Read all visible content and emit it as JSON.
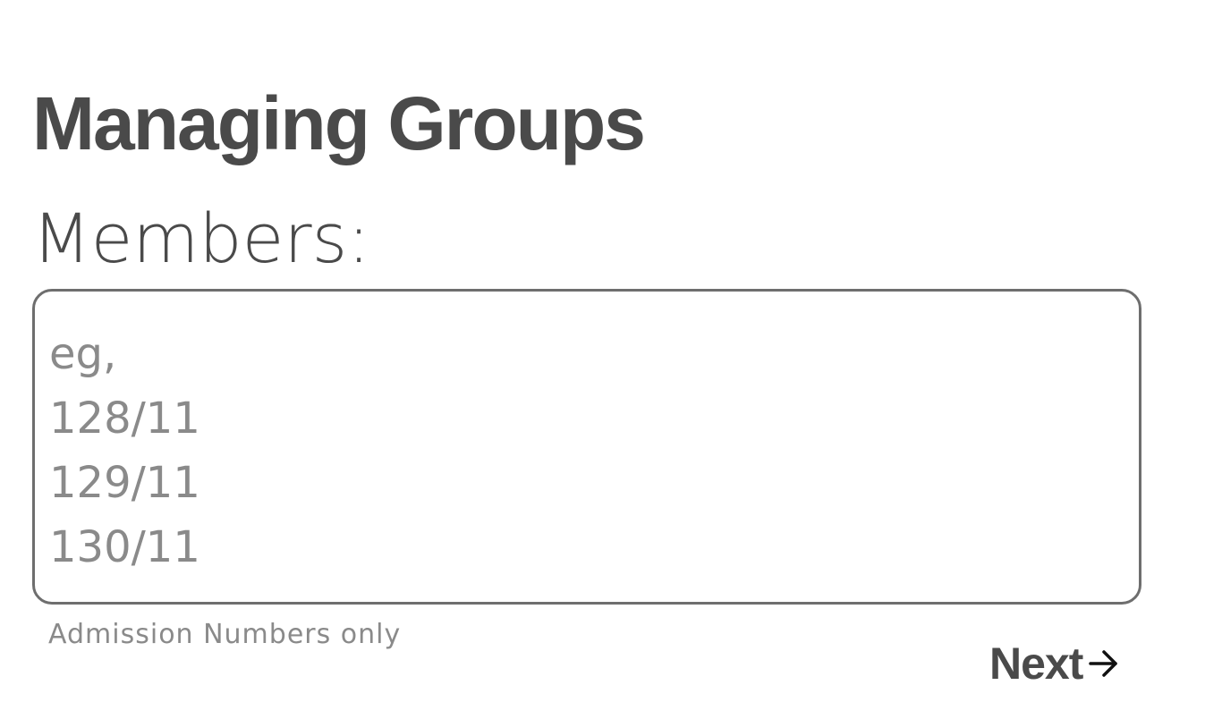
{
  "page": {
    "title": "Managing Groups"
  },
  "members": {
    "label": "Members:",
    "value": "",
    "placeholder": "eg,\n128/11\n129/11\n130/11",
    "hint": "Admission Numbers only"
  },
  "actions": {
    "next_label": "Next",
    "next_icon": "arrow-right-icon"
  }
}
